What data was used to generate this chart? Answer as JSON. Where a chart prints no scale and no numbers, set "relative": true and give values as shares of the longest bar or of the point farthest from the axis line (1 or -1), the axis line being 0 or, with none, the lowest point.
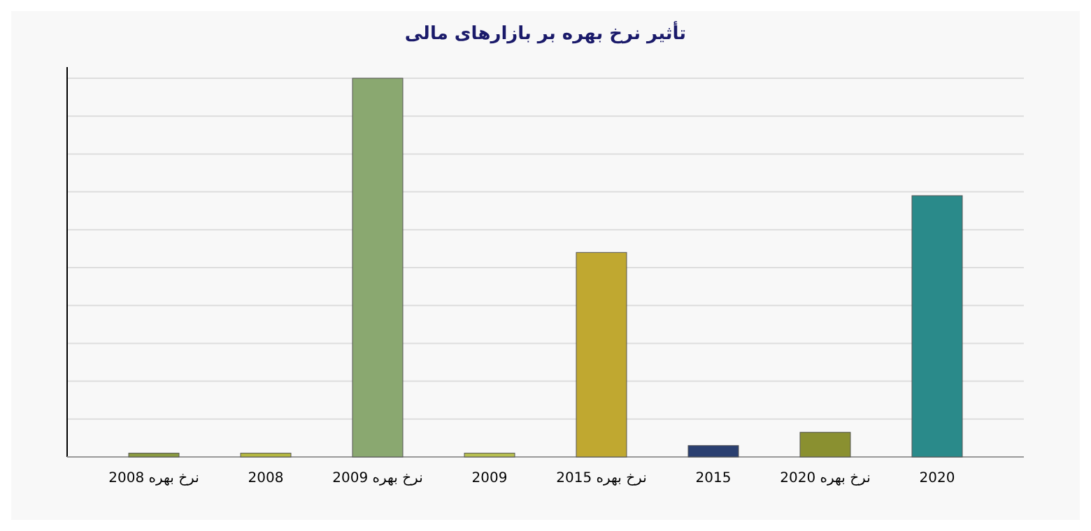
{
  "chart_data": {
    "type": "bar",
    "title": "تأثیر نرخ بهره بر بازارهای مالی",
    "relative": true,
    "grid": true,
    "categories": [
      "نرخ بهره 2008",
      "2008",
      "نرخ بهره 2009",
      "2009",
      "نرخ بهره 2015",
      "2015",
      "نرخ بهره 2020",
      "2020"
    ],
    "values": [
      0.01,
      0.01,
      1,
      0.01,
      0.54,
      0.03,
      0.065,
      0.69
    ],
    "colors": [
      "#8a9a40",
      "#b5b840",
      "#8aa870",
      "#b8c050",
      "#c0a830",
      "#2a3f70",
      "#8a9030",
      "#2a8a8a"
    ]
  }
}
